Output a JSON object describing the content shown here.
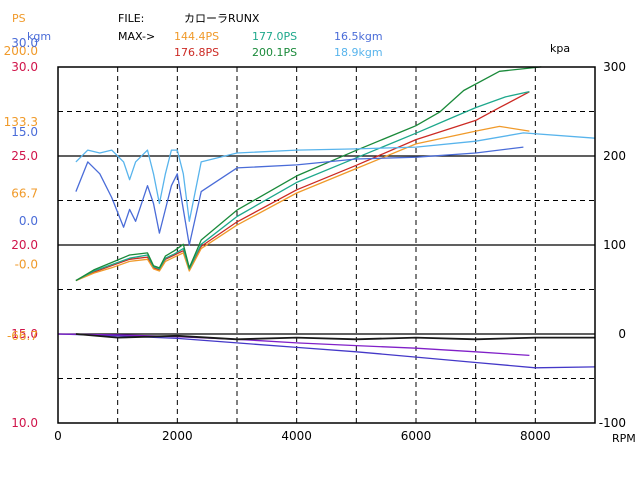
{
  "header": {
    "ps_unit": "PS",
    "kgm_unit": "kgm",
    "file_label": "FILE:",
    "file_name": "カローラRUNX",
    "max_label": "MAX->",
    "max_values": [
      "144.4PS",
      "177.0PS",
      "16.5kgm",
      "176.8PS",
      "200.1PS",
      "18.9kgm"
    ]
  },
  "chart_data": {
    "type": "line",
    "title": "",
    "xlabel": "RPM",
    "ylabel_right": "kpa",
    "xlim": [
      0,
      9000
    ],
    "x_ticks": [
      "0",
      "2000",
      "4000",
      "6000",
      "8000"
    ],
    "left_axis_afr": {
      "ticks": [
        "30.0",
        "25.0",
        "20.0",
        "15.0",
        "10.0"
      ],
      "range": [
        10,
        30
      ],
      "color": "#d0144a"
    },
    "left_axis_ps": {
      "ticks": [
        "200.0",
        "133.3",
        "66.7",
        "-0.0",
        "-66.7"
      ],
      "range": [
        -133.3,
        200
      ],
      "color": "#f09a2a"
    },
    "left_axis_kgm": {
      "ticks": [
        "30.0",
        "15.0",
        "0.0"
      ],
      "range": [
        -30,
        30
      ],
      "color": "#4a6cd8"
    },
    "right_axis_kpa": {
      "ticks": [
        "300",
        "200",
        "100",
        "0",
        "-100"
      ],
      "range": [
        -100,
        300
      ]
    },
    "grid": true,
    "series": [
      {
        "name": "",
        "unit": "PS",
        "color": "#cc2a24",
        "x": [
          300,
          600,
          900,
          1200,
          1500,
          1600,
          1700,
          1800,
          1950,
          2100,
          2200,
          2400,
          3000,
          4000,
          5000,
          6000,
          7000,
          7400,
          7900
        ],
        "y": [
          0,
          8,
          14,
          20,
          22,
          12,
          10,
          20,
          24,
          28,
          10,
          32,
          55,
          85,
          108,
          132,
          150,
          162,
          176.8
        ]
      },
      {
        "name": "",
        "unit": "PS",
        "color": "#f09a2a",
        "x": [
          300,
          600,
          900,
          1200,
          1500,
          1600,
          1700,
          1800,
          1950,
          2100,
          2200,
          2400,
          3000,
          4000,
          5000,
          6000,
          7000,
          7400,
          7900
        ],
        "y": [
          0,
          7,
          12,
          18,
          20,
          11,
          9,
          18,
          22,
          26,
          9,
          30,
          52,
          82,
          105,
          128,
          140,
          144.4,
          140
        ]
      },
      {
        "name": "",
        "unit": "PS",
        "color": "#1ea88c",
        "x": [
          300,
          600,
          900,
          1200,
          1500,
          1600,
          1700,
          1800,
          1950,
          2100,
          2200,
          2400,
          3000,
          4000,
          5000,
          6000,
          6500,
          7000,
          7500,
          7900
        ],
        "y": [
          0,
          9,
          15,
          21,
          24,
          13,
          11,
          21,
          25,
          30,
          11,
          34,
          60,
          92,
          115,
          138,
          150,
          162,
          172,
          177.0
        ]
      },
      {
        "name": "",
        "unit": "PS",
        "color": "#1a8a3a",
        "x": [
          300,
          600,
          900,
          1200,
          1500,
          1600,
          1700,
          1800,
          1950,
          2100,
          2200,
          2400,
          3000,
          4000,
          5000,
          6000,
          6400,
          6800,
          7400,
          8100
        ],
        "y": [
          0,
          10,
          17,
          24,
          26,
          14,
          12,
          23,
          28,
          34,
          12,
          38,
          66,
          98,
          122,
          145,
          158,
          178,
          196,
          200.1
        ]
      },
      {
        "name": "",
        "unit": "kgm",
        "color": "#4a6cd8",
        "x": [
          300,
          500,
          700,
          900,
          1100,
          1200,
          1300,
          1500,
          1600,
          1700,
          1800,
          1900,
          2000,
          2100,
          2200,
          2400,
          3000,
          4000,
          5000,
          6000,
          7000,
          7800
        ],
        "y": [
          9,
          14,
          12,
          8,
          3,
          6,
          4,
          10,
          7,
          2,
          6,
          10,
          12,
          6,
          0,
          9,
          13,
          13.5,
          14.5,
          14.8,
          15.5,
          16.5
        ]
      },
      {
        "name": "",
        "unit": "kgm",
        "color": "#58b4ec",
        "x": [
          300,
          500,
          700,
          900,
          1100,
          1200,
          1300,
          1500,
          1600,
          1700,
          1800,
          1900,
          2000,
          2100,
          2200,
          2400,
          3000,
          4000,
          5000,
          6000,
          7000,
          7800,
          9000
        ],
        "y": [
          14,
          16,
          15.5,
          16,
          14,
          11,
          14,
          16,
          12,
          7,
          12,
          16,
          16,
          12,
          4,
          14,
          15.5,
          16,
          16.2,
          16.5,
          17.5,
          18.9,
          18
        ]
      },
      {
        "name": "",
        "unit": "kpa",
        "color": "#4438c8",
        "x": [
          0,
          1000,
          2000,
          3000,
          4000,
          5000,
          6000,
          7000,
          8000,
          9000
        ],
        "y": [
          0,
          -2,
          -5,
          -10,
          -15,
          -20,
          -26,
          -32,
          -38,
          -37
        ]
      },
      {
        "name": "",
        "unit": "kpa",
        "color": "#8020c8",
        "x": [
          0,
          1000,
          2000,
          3000,
          4000,
          5000,
          6000,
          7000,
          7900
        ],
        "y": [
          0,
          -1,
          -3,
          -6,
          -10,
          -13,
          -16,
          -20,
          -24
        ]
      },
      {
        "name": "",
        "unit": "AFR",
        "color": "#1a1a1a",
        "x": [
          300,
          1000,
          2000,
          3000,
          4000,
          5000,
          6000,
          7000,
          8000,
          9000
        ],
        "y": [
          15.0,
          14.8,
          14.9,
          14.7,
          14.8,
          14.7,
          14.8,
          14.7,
          14.8,
          14.8
        ]
      }
    ]
  }
}
